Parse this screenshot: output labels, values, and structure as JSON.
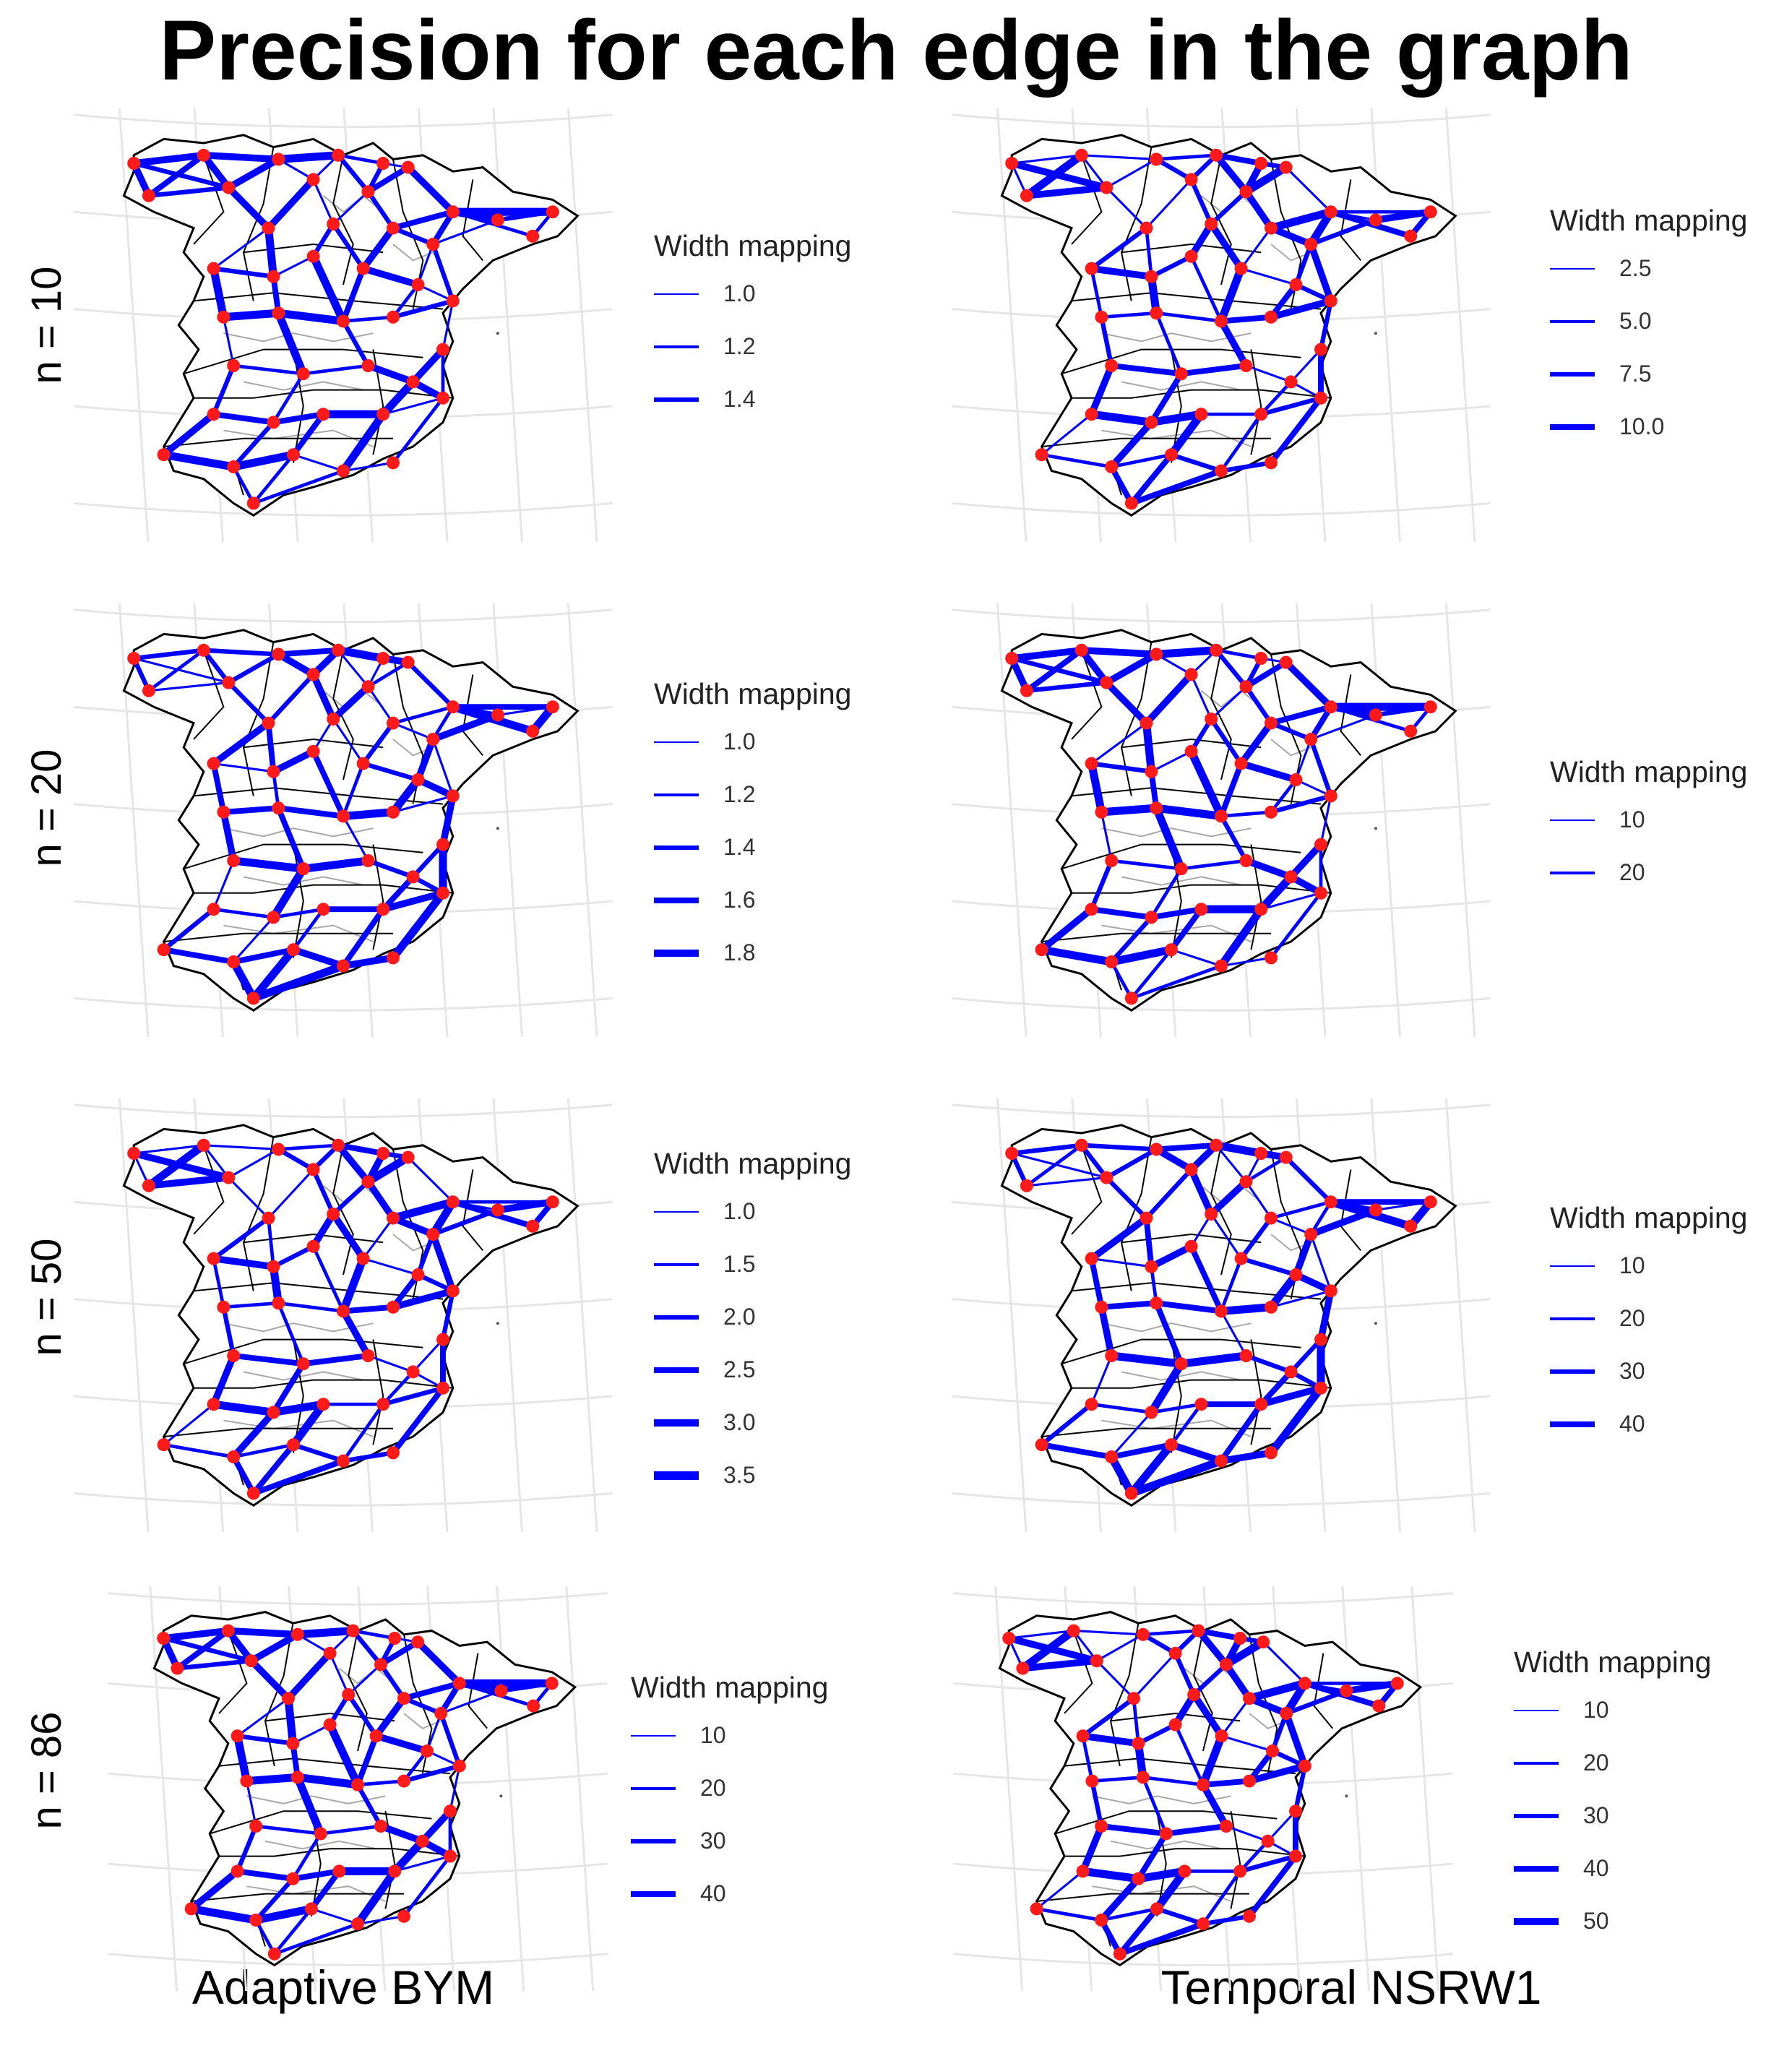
{
  "title": "Precision for each edge in the graph",
  "columns": [
    "Adaptive BYM",
    "Temporal NSRW1"
  ],
  "rows": [
    "n = 10",
    "n = 20",
    "n = 50",
    "n = 86"
  ],
  "legend_title": "Width mapping",
  "colors": {
    "edge": "#0000ff",
    "node": "#ff1a1a",
    "border": "#000000",
    "grid": "#e6e6e6"
  },
  "panels": [
    {
      "row": 0,
      "col": 0,
      "legend": [
        "1.0",
        "1.2",
        "1.4"
      ]
    },
    {
      "row": 0,
      "col": 1,
      "legend": [
        "2.5",
        "5.0",
        "7.5",
        "10.0"
      ]
    },
    {
      "row": 1,
      "col": 0,
      "legend": [
        "1.0",
        "1.2",
        "1.4",
        "1.6",
        "1.8"
      ]
    },
    {
      "row": 1,
      "col": 1,
      "legend": [
        "10",
        "20"
      ]
    },
    {
      "row": 2,
      "col": 0,
      "legend": [
        "1.0",
        "1.5",
        "2.0",
        "2.5",
        "3.0",
        "3.5"
      ]
    },
    {
      "row": 2,
      "col": 1,
      "legend": [
        "10",
        "20",
        "30",
        "40"
      ]
    },
    {
      "row": 3,
      "col": 0,
      "legend": [
        "10",
        "20",
        "30",
        "40"
      ]
    },
    {
      "row": 3,
      "col": 1,
      "legend": [
        "10",
        "20",
        "30",
        "40",
        "50"
      ]
    }
  ]
}
